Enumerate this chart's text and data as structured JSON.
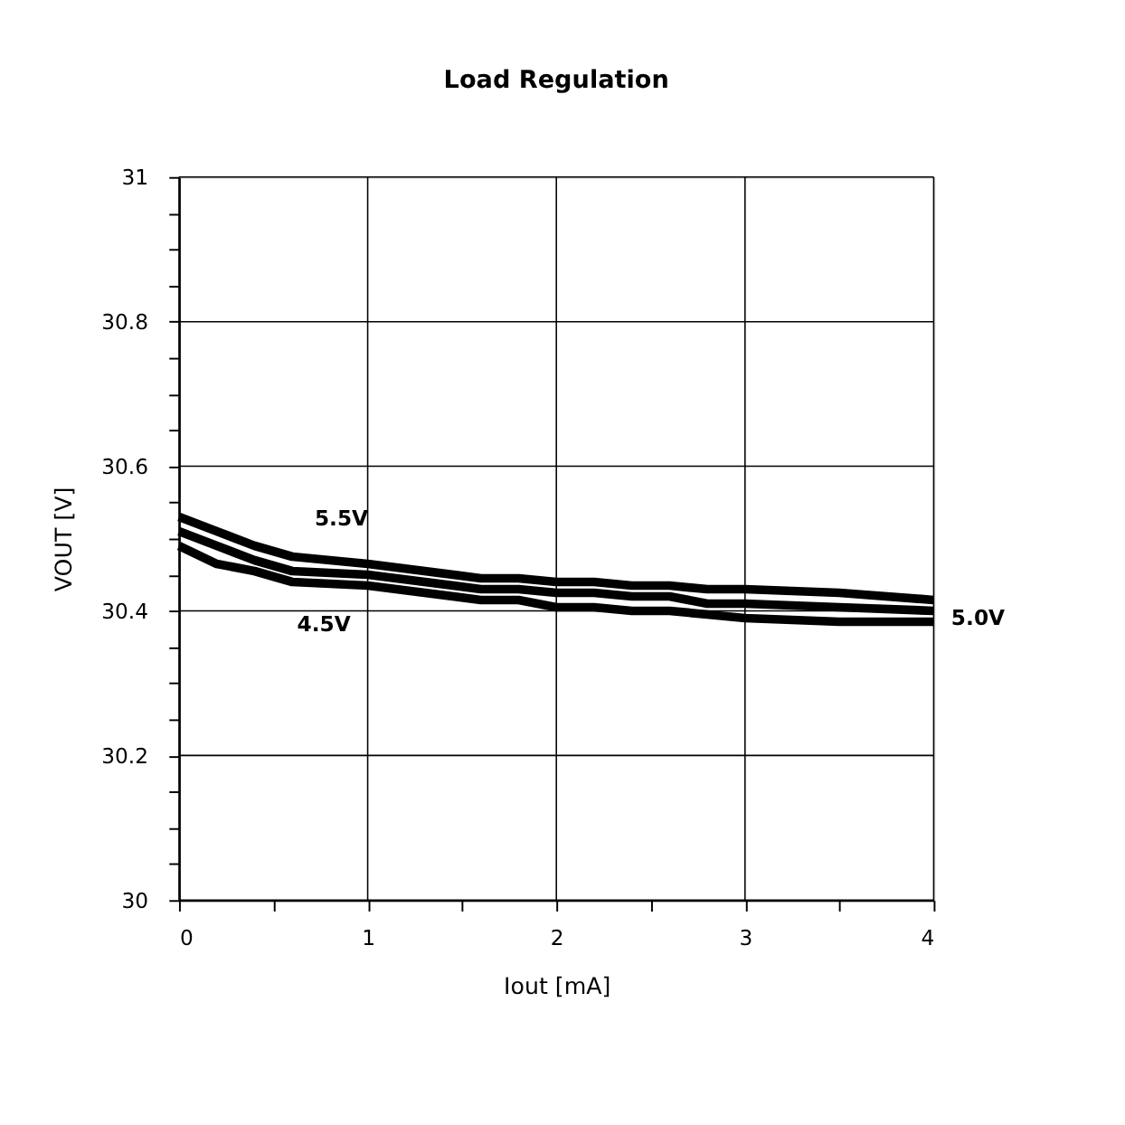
{
  "chart_data": {
    "type": "line",
    "title": "Load Regulation",
    "xlabel": "Iout [mA]",
    "ylabel": "VOUT [V]",
    "x": [
      0,
      0.2,
      0.4,
      0.6,
      1,
      1.6,
      1.8,
      2,
      2.2,
      2.4,
      2.6,
      2.8,
      3,
      3.5,
      4
    ],
    "series": [
      {
        "name": "5.5V",
        "color": "#000000",
        "values": [
          30.53,
          30.51,
          30.49,
          30.475,
          30.465,
          30.445,
          30.445,
          30.44,
          30.44,
          30.435,
          30.435,
          30.43,
          30.43,
          30.425,
          30.415
        ]
      },
      {
        "name": "5.0V",
        "color": "#000000",
        "values": [
          30.51,
          30.49,
          30.47,
          30.455,
          30.45,
          30.43,
          30.43,
          30.425,
          30.425,
          30.42,
          30.42,
          30.41,
          30.41,
          30.405,
          30.4
        ]
      },
      {
        "name": "4.5V",
        "color": "#000000",
        "values": [
          30.49,
          30.465,
          30.455,
          30.44,
          30.435,
          30.415,
          30.415,
          30.405,
          30.405,
          30.4,
          30.4,
          30.395,
          30.39,
          30.385,
          30.385
        ]
      }
    ],
    "xlim": [
      0,
      4
    ],
    "ylim": [
      30,
      31
    ],
    "xticks": [
      0,
      {
        "value": 0.5,
        "label": null
      },
      1,
      {
        "value": 1.5,
        "label": null
      },
      2,
      {
        "value": 2.5,
        "label": null
      },
      3,
      {
        "value": 3.5,
        "label": null
      },
      4
    ],
    "yticks": [
      30,
      {
        "value": 30.05,
        "label": null
      },
      {
        "value": 30.1,
        "label": null
      },
      {
        "value": 30.15,
        "label": null
      },
      30.2,
      {
        "value": 30.25,
        "label": null
      },
      {
        "value": 30.3,
        "label": null
      },
      {
        "value": 30.35,
        "label": null
      },
      30.4,
      {
        "value": 30.45,
        "label": null
      },
      {
        "value": 30.5,
        "label": null
      },
      {
        "value": 30.55,
        "label": null
      },
      30.6,
      {
        "value": 30.65,
        "label": null
      },
      {
        "value": 30.7,
        "label": null
      },
      {
        "value": 30.75,
        "label": null
      },
      30.8,
      {
        "value": 30.85,
        "label": null
      },
      {
        "value": 30.9,
        "label": null
      },
      {
        "value": 30.95,
        "label": null
      },
      31
    ],
    "grid": true,
    "legend": false,
    "marker": "none",
    "line_style": "solid"
  }
}
